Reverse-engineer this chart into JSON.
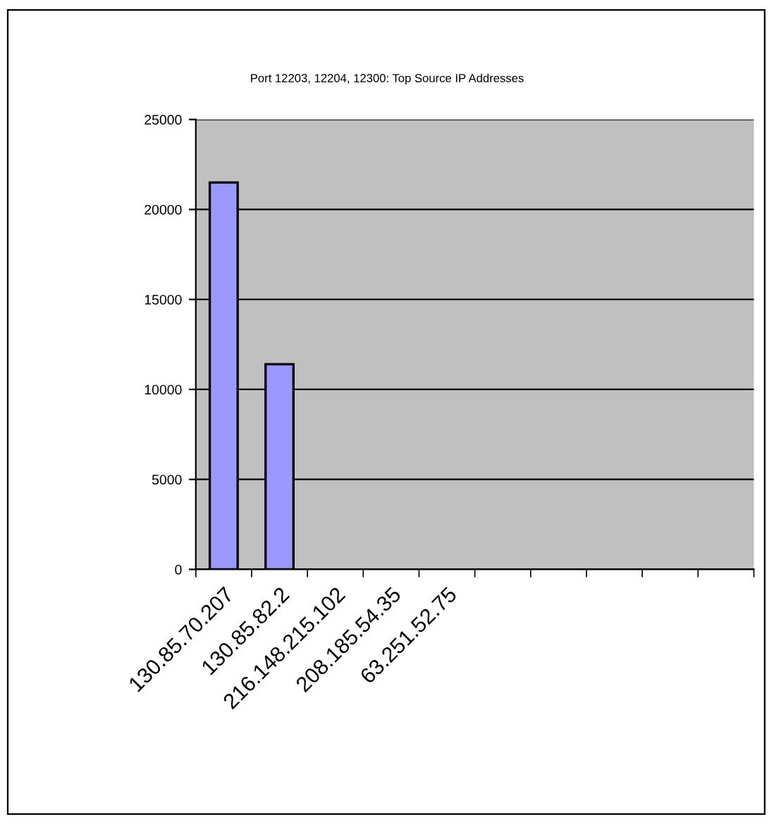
{
  "chart_data": {
    "type": "bar",
    "title": "Port 12203, 12204, 12300: Top Source IP Addresses",
    "categories": [
      "130.85.70.207",
      "130.85.82.2",
      "216.148.215.102",
      "208.185.54.35",
      "63.251.52.75",
      null,
      null,
      null,
      null,
      null
    ],
    "values": [
      21500,
      11400,
      null,
      null,
      null,
      null,
      null,
      null,
      null,
      null
    ],
    "color": "#9999ff",
    "ylim": [
      0,
      25000
    ],
    "yticks": [
      0,
      5000,
      10000,
      15000,
      20000,
      25000
    ],
    "grid": "y",
    "legend": false
  }
}
